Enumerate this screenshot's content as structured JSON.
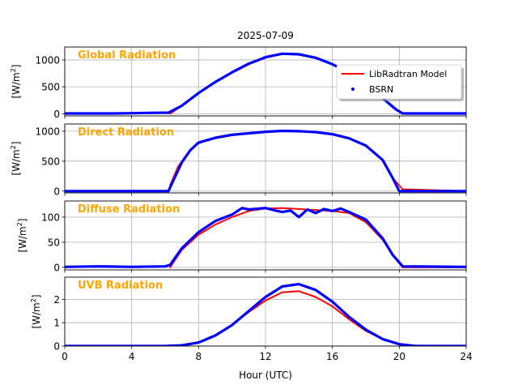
{
  "figure": {
    "title": "2025-07-09",
    "xlabel": "Hour (UTC)",
    "legend": {
      "placement": "top-right of first panel",
      "entries": [
        {
          "name": "LibRadtran Model",
          "color": "#ff0000",
          "style": "line"
        },
        {
          "name": "BSRN",
          "color": "#0000ff",
          "style": "dot"
        }
      ]
    },
    "panel_label_color": "#ffa500"
  },
  "chart_data": [
    {
      "type": "line",
      "label": "Global Radiation",
      "ylabel_main": "[W/m",
      "ylabel_sup": "2",
      "ylabel_tail": "]",
      "xlim": [
        0,
        24
      ],
      "ylim": [
        -40,
        1240
      ],
      "yticks": [
        0,
        500,
        1000
      ],
      "xticks": [
        0,
        4,
        8,
        12,
        16,
        20,
        24
      ],
      "grid": true,
      "series": [
        {
          "name": "LibRadtran Model",
          "color": "#ff0000",
          "x": [
            6.3,
            7,
            8,
            9,
            10,
            11,
            12,
            13,
            14,
            15,
            16,
            17,
            18,
            19,
            19.8,
            20.2,
            24
          ],
          "y": [
            0,
            150,
            380,
            580,
            760,
            920,
            1040,
            1110,
            1100,
            1040,
            920,
            760,
            560,
            290,
            80,
            0,
            0
          ]
        },
        {
          "name": "BSRN",
          "color": "#0000ff",
          "x": [
            0,
            3,
            4,
            5,
            6.2,
            7,
            8,
            9,
            10,
            11,
            12,
            13,
            14,
            15,
            16,
            17,
            18,
            19,
            19.8,
            20.2,
            24
          ],
          "y": [
            5,
            5,
            10,
            15,
            20,
            150,
            385,
            590,
            770,
            930,
            1050,
            1115,
            1105,
            1040,
            920,
            760,
            560,
            290,
            80,
            5,
            5
          ]
        }
      ]
    },
    {
      "type": "line",
      "label": "Direct Radiation",
      "ylabel_main": "[W/m",
      "ylabel_sup": "2",
      "ylabel_tail": "]",
      "xlim": [
        0,
        24
      ],
      "ylim": [
        -30,
        1120
      ],
      "yticks": [
        0,
        500,
        1000
      ],
      "xticks": [
        0,
        4,
        8,
        12,
        16,
        20,
        24
      ],
      "grid": true,
      "series": [
        {
          "name": "LibRadtran Model",
          "color": "#ff0000",
          "x": [
            6.3,
            6.8,
            7.5,
            8,
            9,
            10,
            11,
            12,
            13,
            14,
            15,
            16,
            17,
            18,
            19,
            19.6,
            20.2,
            24
          ],
          "y": [
            100,
            420,
            680,
            800,
            880,
            930,
            960,
            985,
            1000,
            995,
            980,
            950,
            880,
            760,
            520,
            220,
            30,
            0
          ]
        },
        {
          "name": "BSRN",
          "color": "#0000ff",
          "x": [
            0,
            6.2,
            6.6,
            7,
            7.5,
            8,
            9,
            10,
            11,
            12,
            13,
            14,
            15,
            16,
            17,
            18,
            19,
            19.6,
            20,
            24
          ],
          "y": [
            0,
            0,
            240,
            480,
            680,
            810,
            890,
            940,
            965,
            990,
            1005,
            1000,
            985,
            950,
            880,
            760,
            520,
            220,
            0,
            0
          ]
        }
      ]
    },
    {
      "type": "line",
      "label": "Diffuse Radiation",
      "ylabel_main": "[W/m",
      "ylabel_sup": "2",
      "ylabel_tail": "]",
      "xlim": [
        0,
        24
      ],
      "ylim": [
        -5,
        132
      ],
      "yticks": [
        0,
        50,
        100
      ],
      "xticks": [
        0,
        4,
        8,
        12,
        16,
        20,
        24
      ],
      "grid": true,
      "series": [
        {
          "name": "LibRadtran Model",
          "color": "#ff0000",
          "x": [
            6.3,
            7,
            8,
            9,
            10,
            11,
            12,
            13,
            14,
            15,
            16,
            17,
            18,
            19,
            19.6,
            20.2,
            24
          ],
          "y": [
            0,
            35,
            65,
            85,
            100,
            112,
            117,
            118,
            116,
            114,
            112,
            108,
            90,
            55,
            25,
            0,
            0
          ]
        },
        {
          "name": "BSRN",
          "color": "#0000ff",
          "x": [
            0,
            2,
            4,
            6,
            6.3,
            7,
            8,
            9,
            10,
            10.6,
            11,
            12,
            12.6,
            13,
            13.5,
            14,
            14.5,
            15,
            15.5,
            16,
            16.5,
            17,
            18,
            19,
            19.6,
            20.2,
            24
          ],
          "y": [
            1,
            2,
            1,
            2,
            5,
            38,
            70,
            92,
            105,
            118,
            115,
            118,
            113,
            110,
            113,
            100,
            115,
            108,
            116,
            112,
            117,
            110,
            95,
            58,
            25,
            2,
            1
          ]
        }
      ]
    },
    {
      "type": "line",
      "label": "UVB Radiation",
      "ylabel_main": "[W/m",
      "ylabel_sup": "2",
      "ylabel_tail": "]",
      "xlim": [
        0,
        24
      ],
      "ylim": [
        0,
        2.95
      ],
      "yticks": [
        0,
        1,
        2
      ],
      "xticks": [
        0,
        4,
        8,
        12,
        16,
        20,
        24
      ],
      "grid": true,
      "series": [
        {
          "name": "LibRadtran Model",
          "color": "#ff0000",
          "x": [
            6,
            7,
            8,
            9,
            10,
            11,
            12,
            13,
            14,
            15,
            16,
            17,
            18,
            19,
            20,
            21,
            24
          ],
          "y": [
            0,
            0.02,
            0.15,
            0.45,
            0.9,
            1.45,
            1.95,
            2.3,
            2.35,
            2.1,
            1.7,
            1.15,
            0.65,
            0.3,
            0.08,
            0,
            0
          ]
        },
        {
          "name": "BSRN",
          "color": "#0000ff",
          "x": [
            0,
            6,
            7,
            8,
            9,
            10,
            11,
            12,
            13,
            14,
            15,
            16,
            17,
            18,
            19,
            20,
            21,
            24
          ],
          "y": [
            0,
            0,
            0.03,
            0.15,
            0.45,
            0.9,
            1.5,
            2.1,
            2.55,
            2.65,
            2.4,
            1.9,
            1.25,
            0.7,
            0.3,
            0.08,
            0,
            0
          ]
        }
      ]
    }
  ]
}
